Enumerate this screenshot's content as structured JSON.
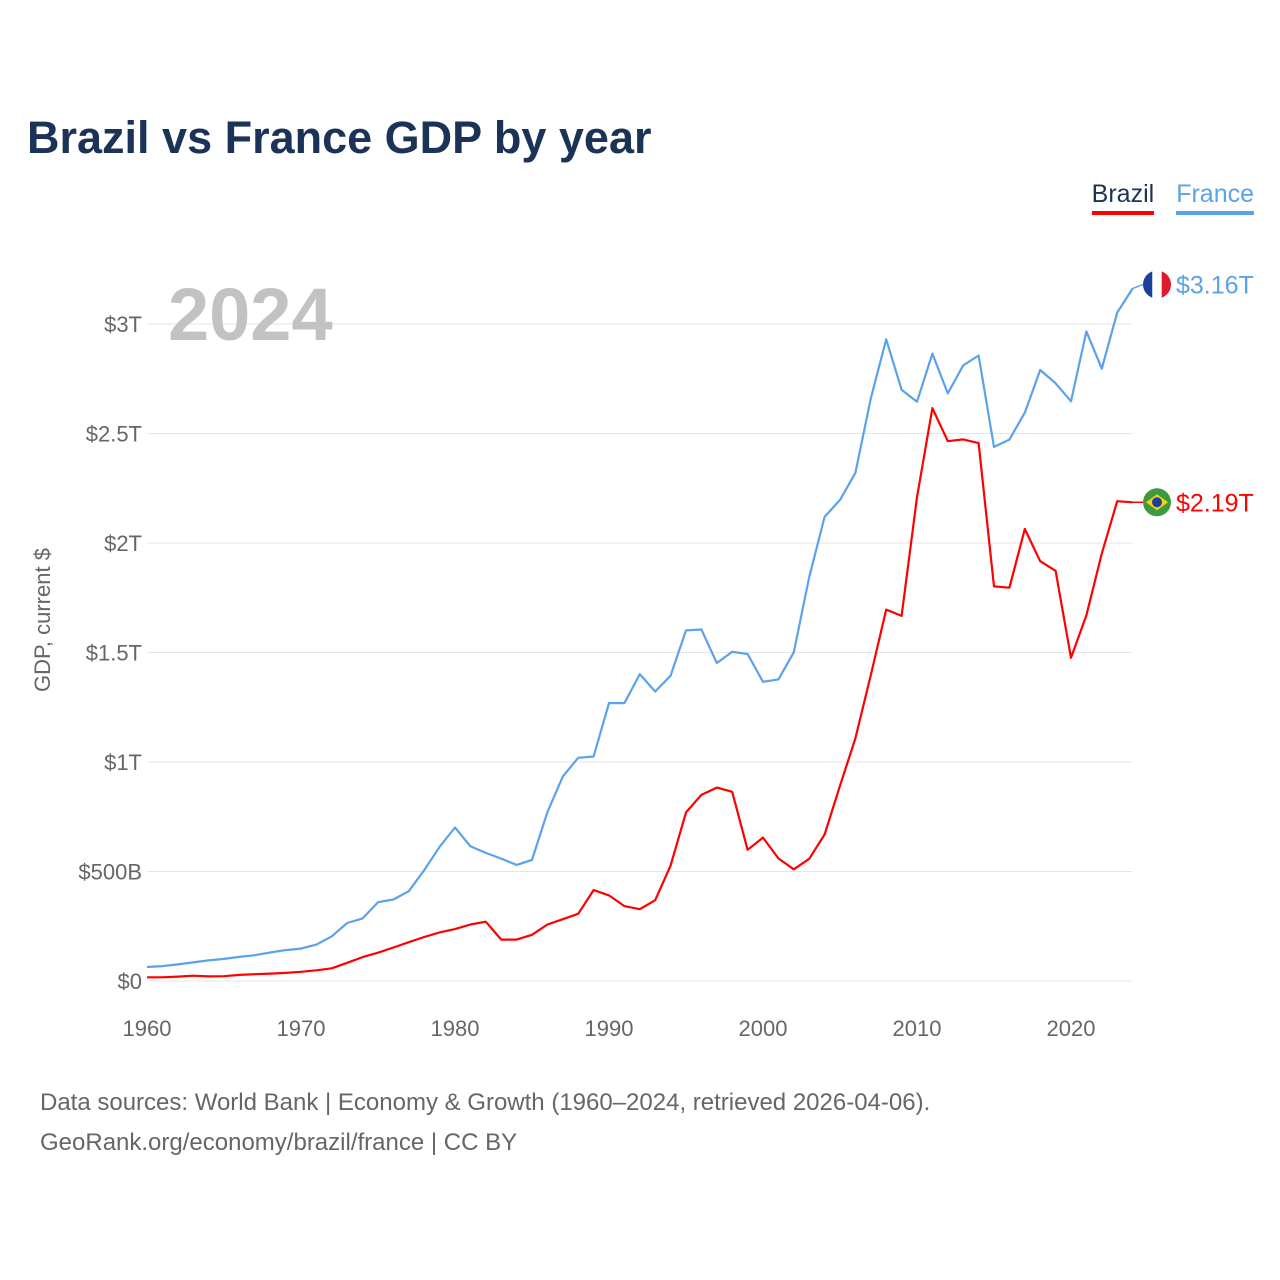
{
  "chart_data": {
    "type": "line",
    "title": "Brazil vs France GDP by year",
    "ylabel": "GDP, current $",
    "xlabel": "",
    "year_watermark": "2024",
    "xlim": [
      1960,
      2024
    ],
    "ylim": [
      0,
      3.3
    ],
    "y_unit": "trillion USD",
    "grid": true,
    "legend_placement": "top-right",
    "x_ticks": [
      "1960",
      "1970",
      "1980",
      "1990",
      "2000",
      "2010",
      "2020"
    ],
    "y_ticks": [
      {
        "value": 0,
        "label": "$0"
      },
      {
        "value": 0.5,
        "label": "$500B"
      },
      {
        "value": 1,
        "label": "$1T"
      },
      {
        "value": 1.5,
        "label": "$1.5T"
      },
      {
        "value": 2,
        "label": "$2T"
      },
      {
        "value": 2.5,
        "label": "$2.5T"
      },
      {
        "value": 3,
        "label": "$3T"
      }
    ],
    "x": [
      1960,
      1961,
      1962,
      1963,
      1964,
      1965,
      1966,
      1967,
      1968,
      1969,
      1970,
      1971,
      1972,
      1973,
      1974,
      1975,
      1976,
      1977,
      1978,
      1979,
      1980,
      1981,
      1982,
      1983,
      1984,
      1985,
      1986,
      1987,
      1988,
      1989,
      1990,
      1991,
      1992,
      1993,
      1994,
      1995,
      1996,
      1997,
      1998,
      1999,
      2000,
      2001,
      2002,
      2003,
      2004,
      2005,
      2006,
      2007,
      2008,
      2009,
      2010,
      2011,
      2012,
      2013,
      2014,
      2015,
      2016,
      2017,
      2018,
      2019,
      2020,
      2021,
      2022,
      2023,
      2024
    ],
    "series": [
      {
        "name": "Brazil",
        "color": "#ff0000",
        "end_label": "$2.19T",
        "flag": "brazil",
        "values": [
          0.017,
          0.017,
          0.02,
          0.024,
          0.021,
          0.022,
          0.028,
          0.031,
          0.034,
          0.037,
          0.042,
          0.049,
          0.058,
          0.083,
          0.109,
          0.129,
          0.153,
          0.177,
          0.201,
          0.222,
          0.237,
          0.258,
          0.271,
          0.189,
          0.189,
          0.211,
          0.258,
          0.282,
          0.307,
          0.415,
          0.391,
          0.342,
          0.328,
          0.369,
          0.527,
          0.77,
          0.85,
          0.883,
          0.864,
          0.599,
          0.655,
          0.56,
          0.51,
          0.558,
          0.669,
          0.892,
          1.108,
          1.397,
          1.696,
          1.667,
          2.209,
          2.616,
          2.465,
          2.473,
          2.456,
          1.802,
          1.796,
          2.064,
          1.917,
          1.873,
          1.476,
          1.67,
          1.952,
          2.191,
          2.186
        ]
      },
      {
        "name": "France",
        "color": "#5aa2ea",
        "end_label": "$3.16T",
        "flag": "france",
        "values": [
          0.064,
          0.068,
          0.076,
          0.085,
          0.094,
          0.101,
          0.11,
          0.118,
          0.13,
          0.141,
          0.148,
          0.166,
          0.204,
          0.265,
          0.286,
          0.36,
          0.372,
          0.41,
          0.506,
          0.613,
          0.701,
          0.615,
          0.585,
          0.559,
          0.53,
          0.553,
          0.771,
          0.934,
          1.019,
          1.025,
          1.269,
          1.269,
          1.401,
          1.322,
          1.394,
          1.601,
          1.605,
          1.452,
          1.503,
          1.493,
          1.366,
          1.377,
          1.501,
          1.844,
          2.119,
          2.197,
          2.32,
          2.66,
          2.93,
          2.7,
          2.645,
          2.865,
          2.683,
          2.811,
          2.856,
          2.439,
          2.472,
          2.595,
          2.79,
          2.729,
          2.647,
          2.966,
          2.796,
          3.052,
          3.162
        ]
      }
    ]
  },
  "footer": {
    "line1": "Data sources: World Bank | Economy & Growth (1960–2024, retrieved 2026-04-06).",
    "line2": "GeoRank.org/economy/brazil/france | CC BY"
  }
}
